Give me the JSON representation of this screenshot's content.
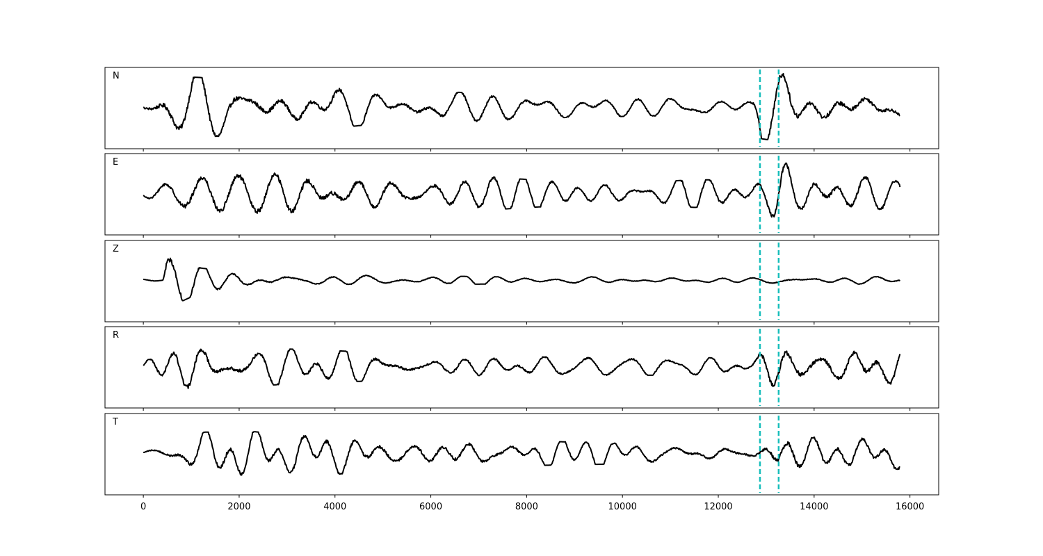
{
  "chart_data": {
    "type": "line",
    "title": "",
    "xlabel": "",
    "ylabel": "",
    "xlim": [
      -800,
      16600
    ],
    "x_ticks": [
      0,
      2000,
      4000,
      6000,
      8000,
      10000,
      12000,
      14000,
      16000
    ],
    "x_tick_labels": [
      "0",
      "2000",
      "4000",
      "6000",
      "8000",
      "10000",
      "12000",
      "14000",
      "16000"
    ],
    "sample_count": 15800,
    "grid": false,
    "colors": {
      "trace": "#000000",
      "marker": "#17bebb"
    },
    "markers": [
      12870,
      13260
    ],
    "panels": [
      {
        "label": "N",
        "x_start": 0,
        "x_end": 15800,
        "envelope": [
          [
            0,
            0.25
          ],
          [
            500,
            0.9
          ],
          [
            1200,
            0.85
          ],
          [
            2200,
            0.8
          ],
          [
            3000,
            0.65
          ],
          [
            4000,
            0.6
          ],
          [
            5000,
            0.45
          ],
          [
            6000,
            0.45
          ],
          [
            7200,
            0.4
          ],
          [
            8500,
            0.3
          ],
          [
            10500,
            0.25
          ],
          [
            12700,
            0.25
          ],
          [
            12900,
            0.9
          ],
          [
            13400,
            1.0
          ],
          [
            14000,
            0.7
          ],
          [
            14600,
            0.75
          ],
          [
            15200,
            0.6
          ],
          [
            15800,
            0.45
          ]
        ]
      },
      {
        "label": "E",
        "x_start": 0,
        "x_end": 15800,
        "envelope": [
          [
            0,
            0.15
          ],
          [
            400,
            0.45
          ],
          [
            900,
            0.75
          ],
          [
            1500,
            0.8
          ],
          [
            2100,
            0.85
          ],
          [
            3000,
            0.75
          ],
          [
            4000,
            0.75
          ],
          [
            5000,
            0.6
          ],
          [
            6000,
            0.5
          ],
          [
            7000,
            0.5
          ],
          [
            8000,
            0.4
          ],
          [
            9000,
            0.35
          ],
          [
            10500,
            0.3
          ],
          [
            11500,
            0.4
          ],
          [
            12700,
            0.35
          ],
          [
            13000,
            0.5
          ],
          [
            13300,
            1.0
          ],
          [
            13700,
            0.55
          ],
          [
            14300,
            0.7
          ],
          [
            15000,
            0.6
          ],
          [
            15800,
            0.5
          ]
        ]
      },
      {
        "label": "Z",
        "x_start": 0,
        "x_end": 15800,
        "envelope": [
          [
            0,
            0.05
          ],
          [
            400,
            0.05
          ],
          [
            480,
            1.0
          ],
          [
            800,
            0.6
          ],
          [
            1200,
            0.35
          ],
          [
            1800,
            0.25
          ],
          [
            2500,
            0.2
          ],
          [
            4000,
            0.15
          ],
          [
            6000,
            0.12
          ],
          [
            8000,
            0.1
          ],
          [
            10000,
            0.1
          ],
          [
            12800,
            0.08
          ],
          [
            13300,
            0.15
          ],
          [
            14500,
            0.12
          ],
          [
            15800,
            0.1
          ]
        ]
      },
      {
        "label": "R",
        "x_start": 0,
        "x_end": 15800,
        "envelope": [
          [
            0,
            0.15
          ],
          [
            400,
            0.5
          ],
          [
            1000,
            0.75
          ],
          [
            2000,
            0.6
          ],
          [
            3000,
            0.5
          ],
          [
            4000,
            0.45
          ],
          [
            5000,
            0.4
          ],
          [
            6000,
            0.35
          ],
          [
            8000,
            0.3
          ],
          [
            10000,
            0.25
          ],
          [
            12700,
            0.25
          ],
          [
            12950,
            0.8
          ],
          [
            13300,
            1.0
          ],
          [
            13700,
            0.7
          ],
          [
            14500,
            0.6
          ],
          [
            15100,
            0.85
          ],
          [
            15800,
            0.5
          ]
        ]
      },
      {
        "label": "T",
        "x_start": 0,
        "x_end": 15800,
        "envelope": [
          [
            0,
            0.1
          ],
          [
            600,
            0.35
          ],
          [
            1200,
            0.6
          ],
          [
            2000,
            0.65
          ],
          [
            3000,
            0.55
          ],
          [
            4000,
            0.6
          ],
          [
            5000,
            0.5
          ],
          [
            6500,
            0.5
          ],
          [
            8000,
            0.35
          ],
          [
            10000,
            0.3
          ],
          [
            12000,
            0.3
          ],
          [
            12800,
            0.3
          ],
          [
            13100,
            0.6
          ],
          [
            13350,
            1.0
          ],
          [
            13700,
            0.6
          ],
          [
            14400,
            0.55
          ],
          [
            15000,
            0.5
          ],
          [
            15800,
            0.45
          ]
        ]
      }
    ]
  }
}
